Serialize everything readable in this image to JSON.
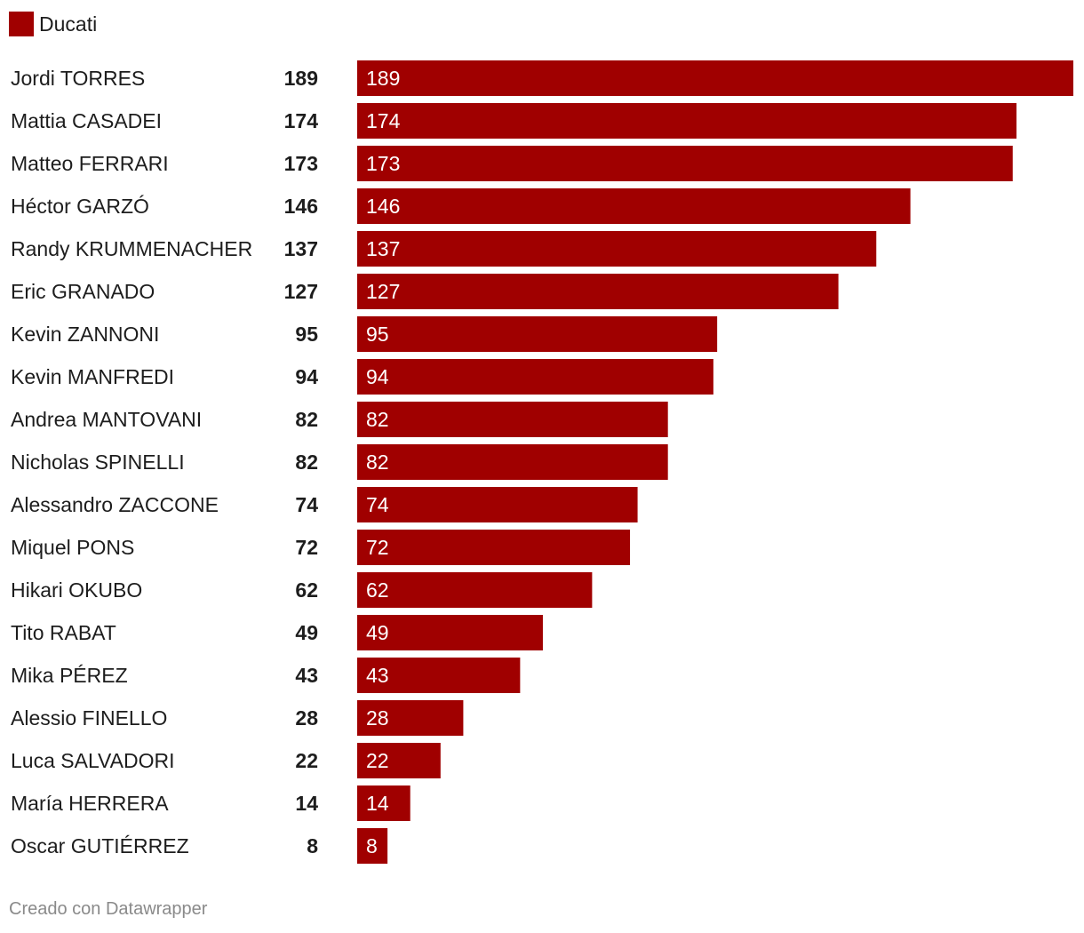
{
  "legend": {
    "label": "Ducati",
    "color": "#a00000"
  },
  "footer": {
    "credit": "Creado con Datawrapper"
  },
  "chart_data": {
    "type": "bar",
    "orientation": "horizontal",
    "series": [
      {
        "name": "Ducati",
        "values": [
          189,
          174,
          173,
          146,
          137,
          127,
          95,
          94,
          82,
          82,
          74,
          72,
          62,
          49,
          43,
          28,
          22,
          14,
          8
        ]
      }
    ],
    "categories": [
      "Jordi TORRES",
      "Mattia CASADEI",
      "Matteo FERRARI",
      "Héctor GARZÓ",
      "Randy KRUMMENACHER",
      "Eric GRANADO",
      "Kevin ZANNONI",
      "Kevin MANFREDI",
      "Andrea MANTOVANI",
      "Nicholas SPINELLI",
      "Alessandro ZACCONE",
      "Miquel PONS",
      "Hikari OKUBO",
      "Tito RABAT",
      "Mika PÉREZ",
      "Alessio FINELLO",
      "Luca SALVADORI",
      "María HERRERA",
      "Oscar GUTIÉRREZ"
    ],
    "xlim": [
      0,
      189
    ],
    "grid": false,
    "legend_position": "top-left",
    "bar_color": "#a00000"
  }
}
